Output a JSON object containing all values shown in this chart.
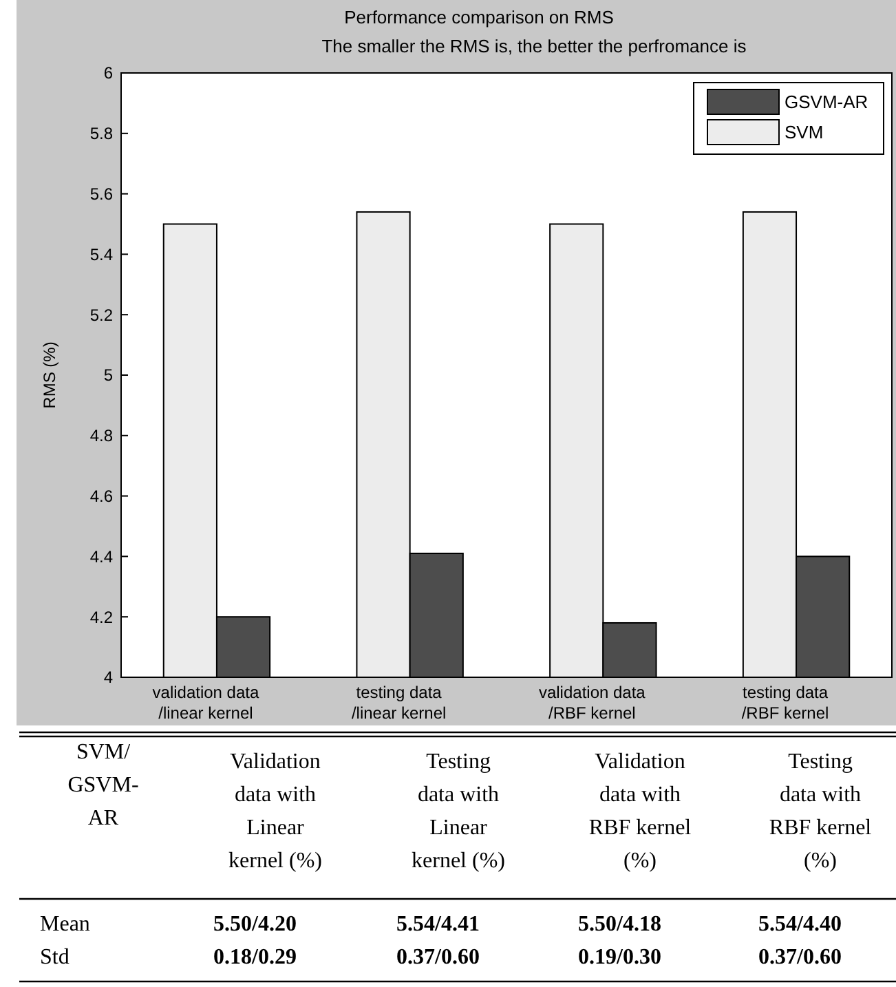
{
  "chart_data": {
    "type": "bar",
    "title": "Performance comparison on RMS",
    "subtitle": "The smaller the RMS is, the better the perfromance is",
    "ylabel": "RMS (%)",
    "categories": [
      "validation data /linear kernel",
      "testing data /linear kernel",
      "validation data /RBF kernel",
      "testing data /RBF kernel"
    ],
    "series": [
      {
        "name": "SVM",
        "color": "#ececec",
        "values": [
          5.5,
          5.54,
          5.5,
          5.54
        ]
      },
      {
        "name": "GSVM-AR",
        "color": "#4d4d4d",
        "values": [
          4.2,
          4.41,
          4.18,
          4.4
        ]
      }
    ],
    "ylim": [
      4,
      6
    ],
    "yticks": [
      4,
      4.2,
      4.4,
      4.6,
      4.8,
      5,
      5.2,
      5.4,
      5.6,
      5.8,
      6
    ],
    "legend": "top right",
    "grid": false,
    "annotations": [
      "SVM/ GSVM- AR",
      "Validation data with Linear kernel (%)",
      "Testing data with Linear kernel (%)",
      "Validation data with RBF kernel (%)",
      "Testing data with RBF kernel (%)",
      "Mean",
      "5.50/4.20",
      "5.54/4.41",
      "5.50/4.18",
      "5.54/4.40",
      "Std",
      "0.18/0.29",
      "0.37/0.60",
      "0.19/0.30",
      "0.37/0.60"
    ]
  }
}
